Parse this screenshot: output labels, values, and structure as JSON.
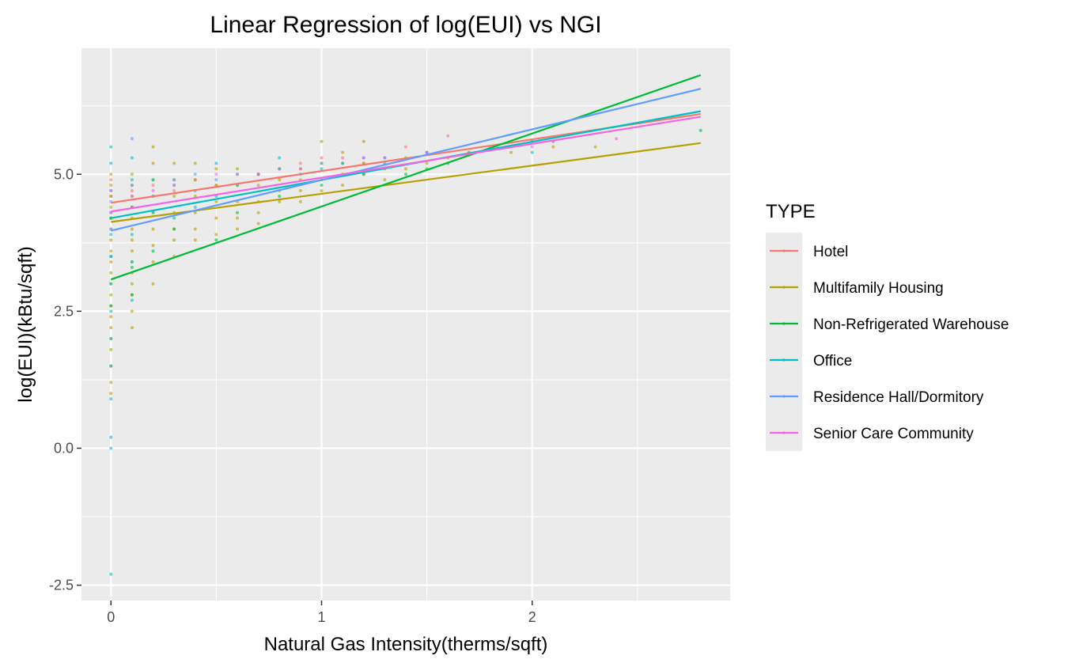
{
  "chart_data": {
    "type": "scatter",
    "title": "Linear Regression of log(EUI) vs NGI",
    "xlabel": "Natural Gas Intensity(therms/sqft)",
    "ylabel": "log(EUI)(kBtu/sqft)",
    "xlim": [
      -0.14,
      2.94
    ],
    "ylim": [
      -2.78,
      7.3
    ],
    "x_ticks": [
      0,
      1,
      2
    ],
    "x_tick_labels": [
      "0",
      "1",
      "2"
    ],
    "y_ticks": [
      -2.5,
      0.0,
      2.5,
      5.0
    ],
    "y_tick_labels": [
      "-2.5",
      "0.0",
      "2.5",
      "5.0"
    ],
    "grid": true,
    "legend": {
      "title": "TYPE",
      "position": "right"
    },
    "series": [
      {
        "name": "Hotel",
        "color": "#F8766D",
        "fit": {
          "x": [
            0,
            2.8
          ],
          "y": [
            4.48,
            6.1
          ]
        },
        "points": [
          [
            0,
            4.6
          ],
          [
            0,
            4.9
          ],
          [
            0,
            4.2
          ],
          [
            0.1,
            4.7
          ],
          [
            0.1,
            4.4
          ],
          [
            0.2,
            4.8
          ],
          [
            0.3,
            4.7
          ],
          [
            0.4,
            4.9
          ],
          [
            0.5,
            4.8
          ],
          [
            0.6,
            5.0
          ],
          [
            0.7,
            5.0
          ],
          [
            0.8,
            5.1
          ],
          [
            0.9,
            5.2
          ],
          [
            1.0,
            5.3
          ],
          [
            1.1,
            5.3
          ],
          [
            1.2,
            5.2
          ],
          [
            1.3,
            5.3
          ],
          [
            1.4,
            5.5
          ],
          [
            1.6,
            5.7
          ],
          [
            1.7,
            5.4
          ]
        ]
      },
      {
        "name": "Multifamily Housing",
        "color": "#B79F00",
        "fit": {
          "x": [
            0,
            2.8
          ],
          "y": [
            4.13,
            5.57
          ]
        },
        "points": [
          [
            0,
            5.0
          ],
          [
            0,
            4.8
          ],
          [
            0,
            4.6
          ],
          [
            0,
            4.4
          ],
          [
            0,
            4.2
          ],
          [
            0,
            4.0
          ],
          [
            0,
            3.8
          ],
          [
            0,
            3.6
          ],
          [
            0,
            3.4
          ],
          [
            0,
            3.2
          ],
          [
            0,
            3.0
          ],
          [
            0,
            2.8
          ],
          [
            0,
            2.6
          ],
          [
            0,
            2.4
          ],
          [
            0,
            2.2
          ],
          [
            0,
            2.0
          ],
          [
            0,
            1.8
          ],
          [
            0,
            1.5
          ],
          [
            0,
            1.2
          ],
          [
            0,
            1.0
          ],
          [
            0.1,
            5.0
          ],
          [
            0.1,
            4.8
          ],
          [
            0.1,
            4.6
          ],
          [
            0.1,
            4.4
          ],
          [
            0.1,
            4.2
          ],
          [
            0.1,
            4.0
          ],
          [
            0.1,
            3.8
          ],
          [
            0.1,
            3.6
          ],
          [
            0.1,
            3.4
          ],
          [
            0.1,
            3.2
          ],
          [
            0.1,
            3.0
          ],
          [
            0.1,
            2.8
          ],
          [
            0.1,
            2.5
          ],
          [
            0.1,
            2.2
          ],
          [
            0.2,
            5.5
          ],
          [
            0.2,
            5.2
          ],
          [
            0.2,
            4.9
          ],
          [
            0.2,
            4.6
          ],
          [
            0.2,
            4.3
          ],
          [
            0.2,
            4.0
          ],
          [
            0.2,
            3.7
          ],
          [
            0.2,
            3.4
          ],
          [
            0.2,
            3.0
          ],
          [
            0.3,
            5.2
          ],
          [
            0.3,
            4.9
          ],
          [
            0.3,
            4.6
          ],
          [
            0.3,
            4.3
          ],
          [
            0.3,
            4.0
          ],
          [
            0.3,
            3.8
          ],
          [
            0.3,
            3.5
          ],
          [
            0.4,
            5.2
          ],
          [
            0.4,
            4.9
          ],
          [
            0.4,
            4.6
          ],
          [
            0.4,
            4.3
          ],
          [
            0.4,
            4.0
          ],
          [
            0.4,
            3.8
          ],
          [
            0.5,
            5.1
          ],
          [
            0.5,
            4.8
          ],
          [
            0.5,
            4.5
          ],
          [
            0.5,
            4.2
          ],
          [
            0.5,
            3.9
          ],
          [
            0.6,
            5.1
          ],
          [
            0.6,
            4.8
          ],
          [
            0.6,
            4.5
          ],
          [
            0.6,
            4.2
          ],
          [
            0.6,
            4.0
          ],
          [
            0.7,
            5.0
          ],
          [
            0.7,
            4.8
          ],
          [
            0.7,
            4.5
          ],
          [
            0.7,
            4.3
          ],
          [
            0.7,
            4.1
          ],
          [
            0.8,
            5.1
          ],
          [
            0.8,
            4.9
          ],
          [
            0.8,
            4.7
          ],
          [
            0.8,
            4.5
          ],
          [
            0.9,
            5.1
          ],
          [
            0.9,
            4.9
          ],
          [
            0.9,
            4.7
          ],
          [
            0.9,
            4.5
          ],
          [
            1.0,
            5.6
          ],
          [
            1.0,
            5.2
          ],
          [
            1.0,
            4.9
          ],
          [
            1.0,
            4.7
          ],
          [
            1.1,
            5.4
          ],
          [
            1.1,
            5.2
          ],
          [
            1.1,
            5.0
          ],
          [
            1.1,
            4.8
          ],
          [
            1.2,
            5.6
          ],
          [
            1.2,
            5.2
          ],
          [
            1.2,
            5.0
          ],
          [
            1.3,
            5.1
          ],
          [
            1.3,
            4.9
          ],
          [
            1.4,
            5.3
          ],
          [
            1.4,
            5.1
          ],
          [
            1.5,
            5.2
          ],
          [
            1.6,
            5.3
          ],
          [
            1.7,
            5.4
          ],
          [
            1.9,
            5.4
          ],
          [
            2.1,
            5.5
          ],
          [
            2.3,
            5.5
          ]
        ]
      },
      {
        "name": "Non-Refrigerated Warehouse",
        "color": "#00BA38",
        "fit": {
          "x": [
            0,
            2.8
          ],
          "y": [
            3.08,
            6.81
          ]
        },
        "points": [
          [
            0,
            4.2
          ],
          [
            0,
            3.5
          ],
          [
            0,
            2.6
          ],
          [
            0.1,
            3.3
          ],
          [
            0.1,
            2.8
          ],
          [
            0.2,
            3.6
          ],
          [
            0.3,
            4.0
          ],
          [
            0.5,
            3.8
          ],
          [
            0.6,
            4.3
          ],
          [
            0.8,
            4.6
          ],
          [
            1.0,
            4.8
          ],
          [
            1.2,
            5.0
          ],
          [
            1.4,
            5.0
          ],
          [
            1.5,
            5.1
          ],
          [
            1.6,
            5.2
          ],
          [
            2.0,
            5.6
          ],
          [
            2.8,
            5.8
          ]
        ]
      },
      {
        "name": "Office",
        "color": "#00BFC4",
        "fit": {
          "x": [
            0,
            2.8
          ],
          "y": [
            4.2,
            6.15
          ]
        },
        "points": [
          [
            0,
            5.5
          ],
          [
            0,
            5.2
          ],
          [
            0,
            4.7
          ],
          [
            0,
            4.3
          ],
          [
            0,
            3.9
          ],
          [
            0,
            3.5
          ],
          [
            0,
            3.0
          ],
          [
            0,
            2.5
          ],
          [
            0,
            2.0
          ],
          [
            0,
            1.5
          ],
          [
            0,
            0.9
          ],
          [
            0,
            0.2
          ],
          [
            0,
            0.0
          ],
          [
            0,
            -2.3
          ],
          [
            0.1,
            5.3
          ],
          [
            0.1,
            4.9
          ],
          [
            0.1,
            4.4
          ],
          [
            0.1,
            3.9
          ],
          [
            0.1,
            3.4
          ],
          [
            0.1,
            2.7
          ],
          [
            0.2,
            4.9
          ],
          [
            0.2,
            4.3
          ],
          [
            0.3,
            4.8
          ],
          [
            0.3,
            4.2
          ],
          [
            0.4,
            4.7
          ],
          [
            0.4,
            4.4
          ],
          [
            0.5,
            5.2
          ],
          [
            0.5,
            4.6
          ],
          [
            0.6,
            4.8
          ],
          [
            0.7,
            5.0
          ],
          [
            0.8,
            5.3
          ],
          [
            0.9,
            5.0
          ],
          [
            1.0,
            5.1
          ],
          [
            1.1,
            5.2
          ],
          [
            1.2,
            5.3
          ],
          [
            1.3,
            5.2
          ],
          [
            1.5,
            5.4
          ],
          [
            2.0,
            5.4
          ],
          [
            2.1,
            5.6
          ]
        ]
      },
      {
        "name": "Residence Hall/Dormitory",
        "color": "#619CFF",
        "fit": {
          "x": [
            0,
            2.8
          ],
          "y": [
            3.97,
            6.56
          ]
        },
        "points": [
          [
            0,
            4.5
          ],
          [
            0,
            4.0
          ],
          [
            0.1,
            5.65
          ],
          [
            0.1,
            4.8
          ],
          [
            0.2,
            4.6
          ],
          [
            0.3,
            4.9
          ],
          [
            0.4,
            5.0
          ],
          [
            0.5,
            4.9
          ],
          [
            0.6,
            5.0
          ],
          [
            0.8,
            5.1
          ],
          [
            1.0,
            5.2
          ],
          [
            1.3,
            5.3
          ],
          [
            1.5,
            5.4
          ]
        ]
      },
      {
        "name": "Senior Care Community",
        "color": "#F564E3",
        "fit": {
          "x": [
            0,
            2.8
          ],
          "y": [
            4.32,
            6.05
          ]
        },
        "points": [
          [
            0,
            4.7
          ],
          [
            0,
            4.3
          ],
          [
            0.1,
            4.6
          ],
          [
            0.2,
            4.7
          ],
          [
            0.3,
            4.8
          ],
          [
            0.5,
            5.0
          ],
          [
            0.7,
            5.0
          ],
          [
            0.9,
            5.1
          ],
          [
            1.2,
            5.3
          ],
          [
            1.5,
            5.4
          ],
          [
            1.8,
            5.5
          ],
          [
            2.0,
            5.5
          ],
          [
            2.1,
            5.6
          ],
          [
            2.4,
            5.65
          ]
        ]
      }
    ]
  }
}
